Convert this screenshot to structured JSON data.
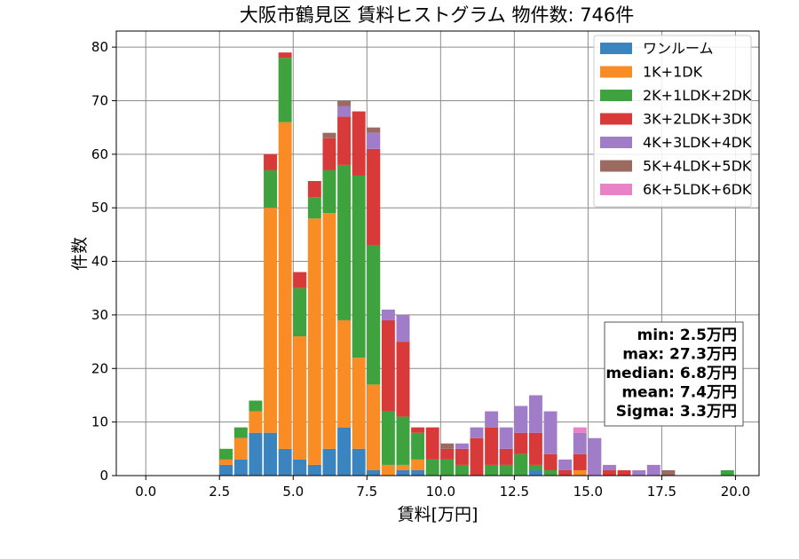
{
  "chart_data": {
    "type": "bar",
    "stacked": true,
    "title": "大阪市鶴見区 賃料ヒストグラム 物件数: 746件",
    "xlabel": "賃料[万円]",
    "ylabel": "件数",
    "xlim": [
      -1.0,
      20.8
    ],
    "ylim": [
      0,
      83
    ],
    "xticks": [
      0,
      2.5,
      5,
      7.5,
      10,
      12.5,
      15,
      17.5,
      20
    ],
    "xtick_labels": [
      "0.0",
      "2.5",
      "5.0",
      "7.5",
      "10.0",
      "12.5",
      "15.0",
      "17.5",
      "20.0"
    ],
    "yticks": [
      0,
      10,
      20,
      30,
      40,
      50,
      60,
      70,
      80
    ],
    "ytick_labels": [
      "0",
      "10",
      "20",
      "30",
      "40",
      "50",
      "60",
      "70",
      "80"
    ],
    "grid": true,
    "legend_position": "top-right",
    "bin_width": 0.5,
    "bins": [
      2.5,
      3.0,
      3.5,
      4.0,
      4.5,
      5.0,
      5.5,
      6.0,
      6.5,
      7.0,
      7.5,
      8.0,
      8.5,
      9.0,
      9.5,
      10.0,
      10.5,
      11.0,
      11.5,
      12.0,
      12.5,
      13.0,
      13.5,
      14.0,
      14.5,
      15.0,
      15.5,
      16.0,
      16.5,
      17.0,
      17.5,
      18.0,
      18.5,
      19.0,
      19.5
    ],
    "series": [
      {
        "name": "ワンルーム",
        "color": "#3a84c0",
        "values": [
          2,
          3,
          8,
          8,
          5,
          3,
          2,
          5,
          9,
          5,
          1,
          0,
          1,
          1,
          0,
          0,
          0,
          0,
          0,
          0,
          0,
          1,
          0,
          0,
          0,
          0,
          0,
          0,
          0,
          0,
          0,
          0,
          0,
          0,
          0
        ]
      },
      {
        "name": "1K+1DK",
        "color": "#f98c25",
        "values": [
          1,
          4,
          4,
          42,
          61,
          23,
          46,
          44,
          20,
          17,
          16,
          2,
          1,
          2,
          0,
          0,
          0,
          0,
          0,
          0,
          0,
          0,
          0,
          0,
          1,
          0,
          0,
          0,
          0,
          0,
          0,
          0,
          0,
          0,
          0
        ]
      },
      {
        "name": "2K+1LDK+2DK",
        "color": "#3ea33e",
        "values": [
          2,
          2,
          2,
          7,
          12,
          9,
          4,
          8,
          29,
          34,
          26,
          10,
          9,
          5,
          3,
          3,
          2,
          0,
          2,
          2,
          4,
          1,
          1,
          0,
          0,
          0,
          0,
          0,
          0,
          0,
          0,
          0,
          0,
          0,
          1
        ]
      },
      {
        "name": "3K+2LDK+3DK",
        "color": "#d83a3a",
        "values": [
          0,
          0,
          0,
          3,
          1,
          3,
          3,
          6,
          9,
          12,
          18,
          17,
          14,
          1,
          6,
          2,
          3,
          7,
          7,
          3,
          4,
          6,
          3,
          1,
          3,
          0,
          1,
          1,
          0,
          0,
          0,
          0,
          0,
          0,
          0
        ]
      },
      {
        "name": "4K+3LDK+4DK",
        "color": "#a17dc9",
        "values": [
          0,
          0,
          0,
          0,
          0,
          0,
          0,
          0,
          2,
          0,
          3,
          2,
          5,
          0,
          0,
          0,
          1,
          2,
          3,
          4,
          5,
          7,
          8,
          2,
          4,
          7,
          1,
          0,
          1,
          2,
          0,
          0,
          0,
          0,
          0
        ]
      },
      {
        "name": "5K+4LDK+5DK",
        "color": "#9b6b61",
        "values": [
          0,
          0,
          0,
          0,
          0,
          0,
          0,
          1,
          1,
          0,
          1,
          0,
          0,
          0,
          0,
          1,
          0,
          0,
          0,
          0,
          0,
          0,
          0,
          0,
          0,
          0,
          0,
          0,
          0,
          0,
          1,
          0,
          0,
          0,
          0
        ]
      },
      {
        "name": "6K+5LDK+6DK",
        "color": "#e883c7",
        "values": [
          0,
          0,
          0,
          0,
          0,
          0,
          0,
          0,
          0,
          0,
          0,
          0,
          0,
          0,
          0,
          0,
          0,
          0,
          0,
          0,
          0,
          0,
          0,
          0,
          1,
          0,
          0,
          0,
          0,
          0,
          0,
          0,
          0,
          0,
          0
        ]
      }
    ],
    "stats": [
      "min: 2.5万円",
      "max: 27.3万円",
      "median: 6.8万円",
      "mean: 7.4万円",
      "Sigma: 3.3万円"
    ]
  }
}
